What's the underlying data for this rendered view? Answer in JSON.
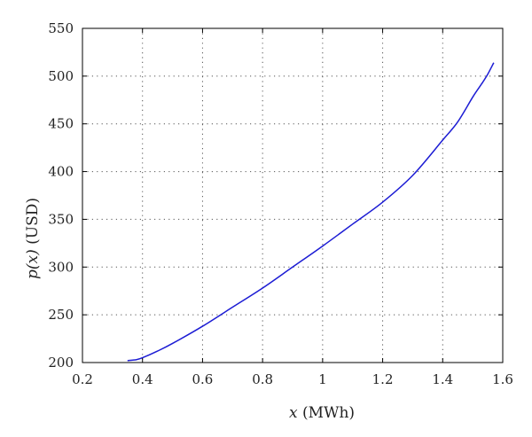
{
  "chart_data": {
    "type": "line",
    "title": "",
    "xlabel": "x (MWh)",
    "ylabel": "p(x) (USD)",
    "xlim": [
      0.2,
      1.6
    ],
    "ylim": [
      200,
      550
    ],
    "x_ticks": [
      0.2,
      0.4,
      0.6,
      0.8,
      1,
      1.2,
      1.4,
      1.6
    ],
    "y_ticks": [
      200,
      250,
      300,
      350,
      400,
      450,
      500,
      550
    ],
    "x_tick_labels": [
      "0.2",
      "0.4",
      "0.6",
      "0.8",
      "1",
      "1.2",
      "1.4",
      "1.6"
    ],
    "y_tick_labels": [
      "200",
      "250",
      "300",
      "350",
      "400",
      "450",
      "500",
      "550"
    ],
    "grid": true,
    "series": [
      {
        "color": "#1c1cd4",
        "x": [
          0.35,
          0.38,
          0.4,
          0.45,
          0.5,
          0.6,
          0.7,
          0.8,
          0.9,
          1.0,
          1.1,
          1.2,
          1.3,
          1.4,
          1.45,
          1.5,
          1.53,
          1.55,
          1.57
        ],
        "y": [
          202,
          203,
          205,
          212,
          220,
          238,
          258,
          278,
          300,
          322,
          345,
          368,
          396,
          433,
          452,
          478,
          492,
          502,
          514
        ]
      }
    ]
  }
}
